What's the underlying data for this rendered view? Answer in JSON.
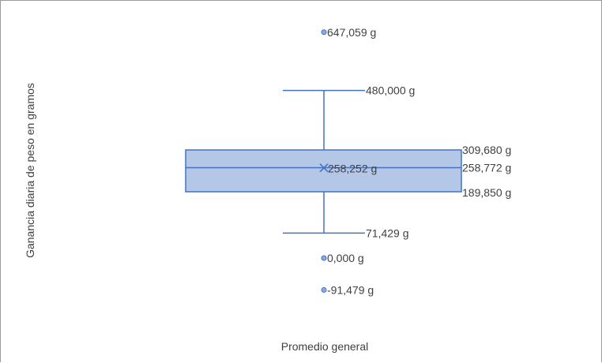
{
  "chart_data": {
    "type": "box",
    "xlabel": "",
    "ylabel": "Ganancia diaria de peso en gramos",
    "categories": [
      "Promedio general"
    ],
    "box": {
      "q1": 189.85,
      "median": 258.772,
      "q3": 309.68,
      "mean": 258.252,
      "whisker_low": 71.429,
      "whisker_high": 480.0
    },
    "outliers": [
      647.059,
      0.0,
      -91.479
    ],
    "labels": {
      "q1": "189,850 g",
      "median": "258,772 g",
      "q3": "309,680 g",
      "mean": "258,252 g",
      "whisker_low": "71,429 g",
      "whisker_high": "480,000 g",
      "outliers": [
        "647,059 g",
        "0,000 g",
        "-91,479 g"
      ]
    },
    "colors": {
      "box_fill": "#b4c7e7",
      "box_stroke": "#4472c4",
      "line": "#4472c4",
      "text": "#404040"
    },
    "grid": false,
    "legend": "none"
  }
}
